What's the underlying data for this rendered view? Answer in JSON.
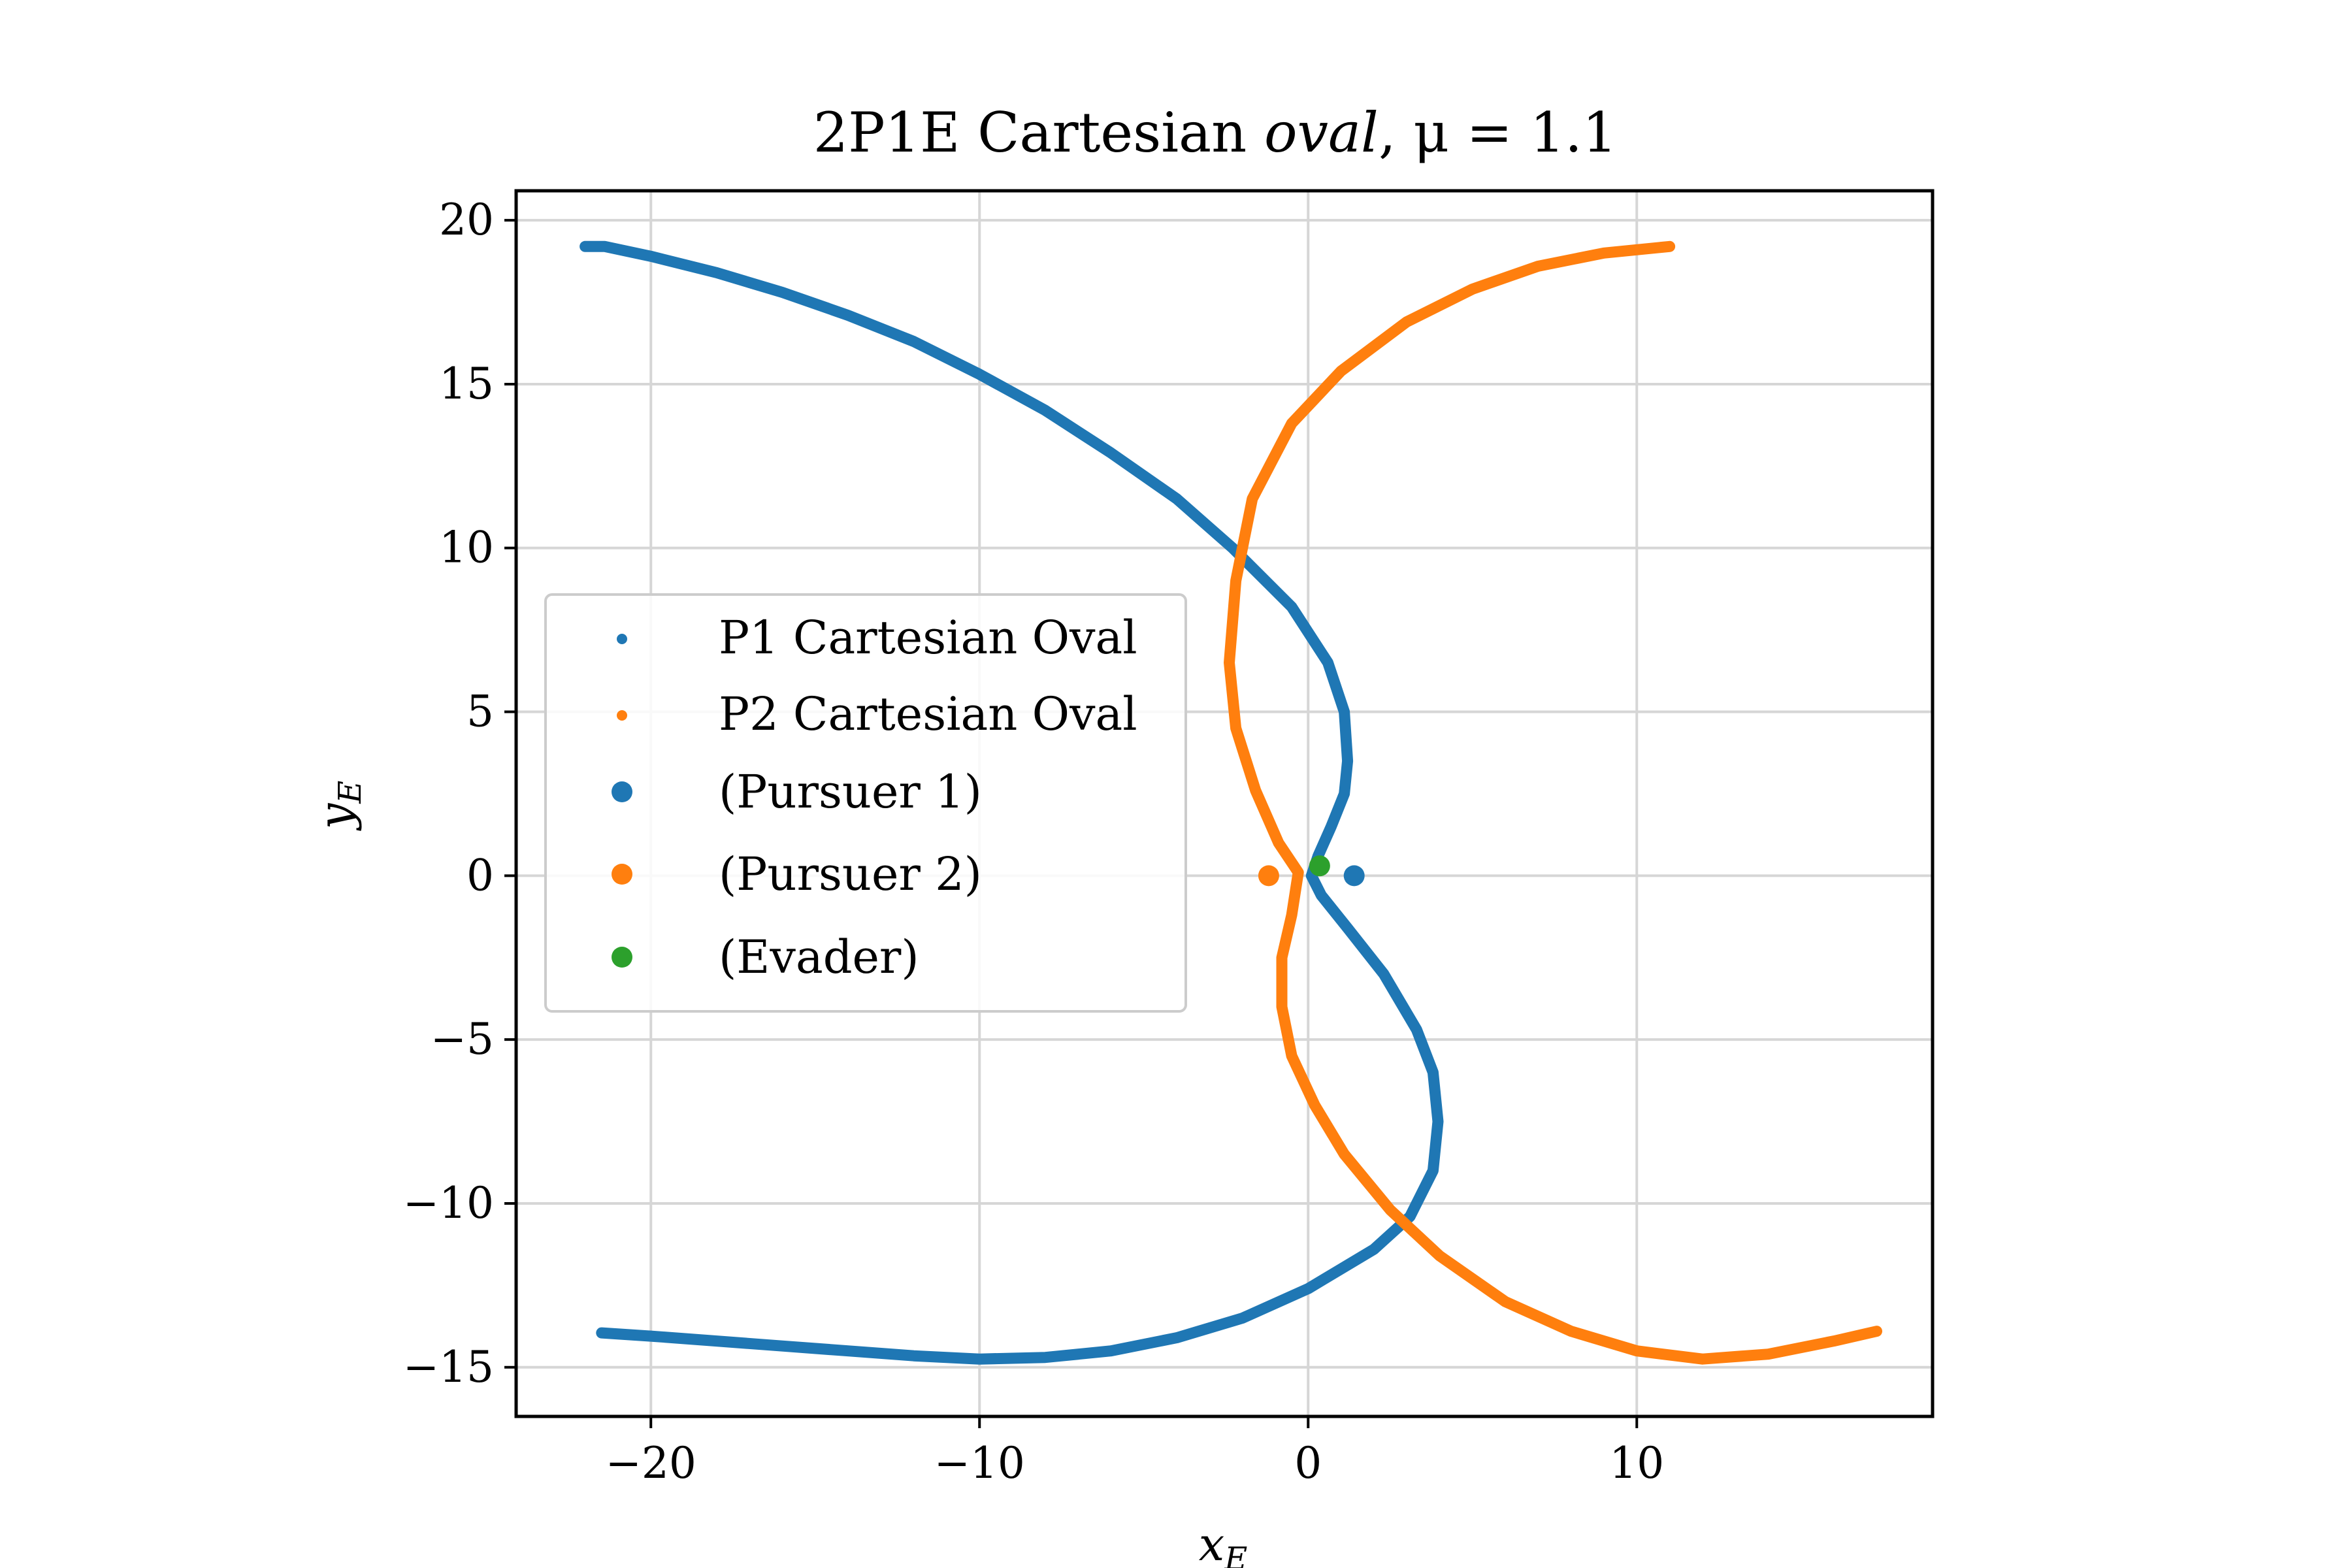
{
  "chart_data": {
    "type": "scatter",
    "title": {
      "prefix": "2P1E Cartesian ",
      "italic": "oval",
      "suffix": ", μ = 1.1"
    },
    "xlabel": {
      "main": "x",
      "sub": "E"
    },
    "ylabel": {
      "main": "y",
      "sub": "E"
    },
    "xlim": [
      -24.1,
      19.0
    ],
    "ylim": [
      -16.5,
      20.9
    ],
    "xticks": [
      -20,
      -10,
      0,
      10
    ],
    "yticks": [
      -15,
      -10,
      -5,
      0,
      5,
      10,
      15,
      20
    ],
    "xtick_labels": [
      "−20",
      "−10",
      "0",
      "10"
    ],
    "ytick_labels": [
      "−15",
      "−10",
      "−5",
      "0",
      "5",
      "10",
      "15",
      "20"
    ],
    "grid": true,
    "legend_position": "center-left",
    "series": [
      {
        "name": "P1 Cartesian Oval",
        "color": "#1f77b4",
        "marker": "small-dot",
        "points": [
          [
            -22.0,
            19.2
          ],
          [
            -21.4,
            19.2
          ],
          [
            -20.0,
            18.9
          ],
          [
            -18.0,
            18.4
          ],
          [
            -16.0,
            17.8
          ],
          [
            -14.0,
            17.1
          ],
          [
            -12.0,
            16.3
          ],
          [
            -10.0,
            15.3
          ],
          [
            -8.0,
            14.2
          ],
          [
            -6.0,
            12.9
          ],
          [
            -4.0,
            11.5
          ],
          [
            -2.3,
            10.0
          ],
          [
            -0.5,
            8.2
          ],
          [
            0.6,
            6.5
          ],
          [
            1.1,
            5.0
          ],
          [
            1.2,
            3.5
          ],
          [
            1.1,
            2.5
          ],
          [
            0.7,
            1.5
          ],
          [
            0.3,
            0.6
          ],
          [
            0.1,
            0.0
          ],
          [
            0.4,
            -0.6
          ],
          [
            1.2,
            -1.6
          ],
          [
            2.3,
            -3.0
          ],
          [
            3.3,
            -4.7
          ],
          [
            3.8,
            -6.0
          ],
          [
            3.95,
            -7.5
          ],
          [
            3.8,
            -9.0
          ],
          [
            3.1,
            -10.4
          ],
          [
            2.0,
            -11.4
          ],
          [
            0.0,
            -12.6
          ],
          [
            -2.0,
            -13.5
          ],
          [
            -4.0,
            -14.1
          ],
          [
            -6.0,
            -14.5
          ],
          [
            -8.0,
            -14.7
          ],
          [
            -10.0,
            -14.75
          ],
          [
            -12.0,
            -14.65
          ],
          [
            -14.0,
            -14.5
          ],
          [
            -16.0,
            -14.35
          ],
          [
            -18.0,
            -14.2
          ],
          [
            -20.0,
            -14.05
          ],
          [
            -21.5,
            -13.95
          ]
        ]
      },
      {
        "name": "P2 Cartesian Oval",
        "color": "#ff7f0e",
        "marker": "small-dot",
        "points": [
          [
            11.0,
            19.2
          ],
          [
            9.0,
            19.0
          ],
          [
            7.0,
            18.6
          ],
          [
            5.0,
            17.9
          ],
          [
            3.0,
            16.9
          ],
          [
            1.0,
            15.4
          ],
          [
            -0.5,
            13.8
          ],
          [
            -1.7,
            11.5
          ],
          [
            -2.2,
            9.0
          ],
          [
            -2.4,
            6.5
          ],
          [
            -2.2,
            4.5
          ],
          [
            -1.6,
            2.6
          ],
          [
            -0.9,
            1.0
          ],
          [
            -0.3,
            0.1
          ],
          [
            -0.5,
            -1.2
          ],
          [
            -0.8,
            -2.5
          ],
          [
            -0.8,
            -4.0
          ],
          [
            -0.5,
            -5.5
          ],
          [
            0.2,
            -7.0
          ],
          [
            1.1,
            -8.5
          ],
          [
            2.5,
            -10.2
          ],
          [
            4.0,
            -11.6
          ],
          [
            6.0,
            -13.0
          ],
          [
            8.0,
            -13.9
          ],
          [
            10.0,
            -14.5
          ],
          [
            12.0,
            -14.75
          ],
          [
            14.0,
            -14.6
          ],
          [
            16.0,
            -14.2
          ],
          [
            17.3,
            -13.9
          ]
        ]
      }
    ],
    "markers": [
      {
        "name": "(Pursuer 1)",
        "color": "#1f77b4",
        "x": 1.4,
        "y": 0.0
      },
      {
        "name": "(Pursuer 2)",
        "color": "#ff7f0e",
        "x": -1.2,
        "y": 0.0
      },
      {
        "name": "(Evader)",
        "color": "#2ca02c",
        "x": 0.35,
        "y": 0.3
      }
    ]
  }
}
